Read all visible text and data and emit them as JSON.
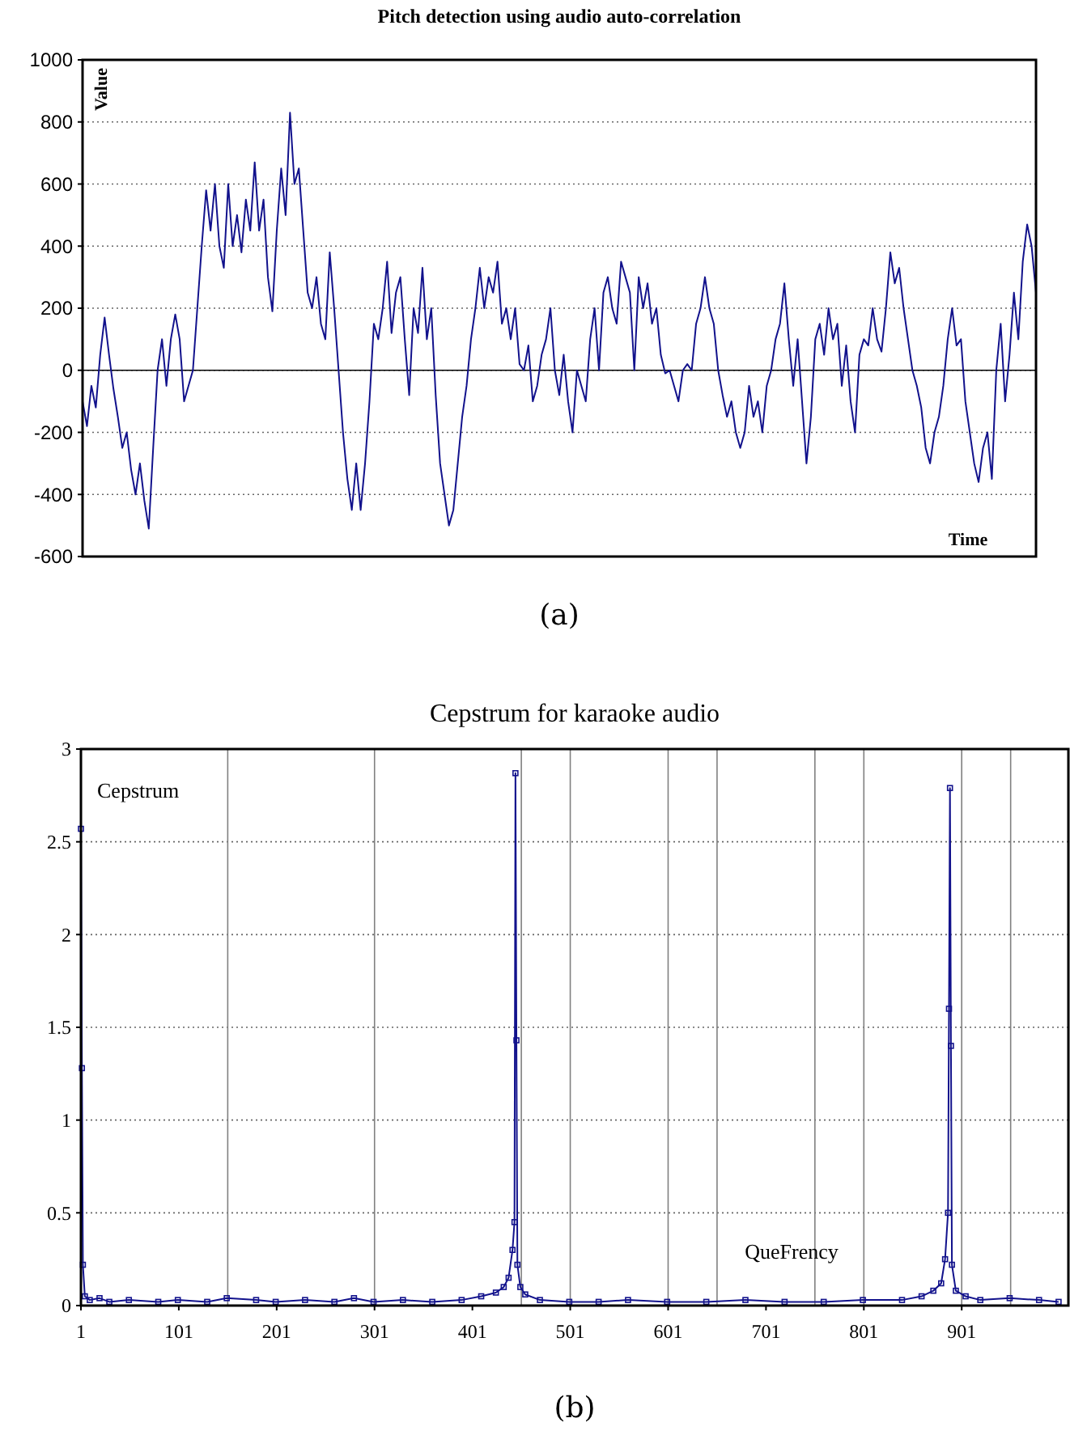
{
  "chart_data": [
    {
      "type": "line",
      "title": "Pitch detection using audio auto-correlation",
      "xlabel": "Time",
      "ylabel": "Value",
      "annotations": [
        "(a)"
      ],
      "categories": [
        null,
        null,
        null,
        null,
        null,
        null,
        null,
        null,
        null,
        null,
        null,
        null,
        null,
        null,
        null,
        null,
        null,
        null,
        null,
        null,
        null,
        null,
        null,
        null,
        null,
        null,
        null,
        null,
        null,
        null,
        null,
        null,
        null,
        null,
        null,
        null,
        null,
        null,
        null,
        null,
        null,
        null,
        null,
        null,
        null,
        null,
        null,
        null,
        null,
        null,
        null,
        null,
        null,
        null,
        null,
        null,
        null,
        null,
        null,
        null,
        null,
        null,
        null,
        null,
        null,
        null,
        null,
        null,
        null,
        null,
        null,
        null,
        null,
        null,
        null,
        null,
        null,
        null,
        null,
        null,
        null,
        null,
        null,
        null,
        null,
        null,
        null,
        null,
        null,
        null,
        null,
        null,
        null,
        null,
        null,
        null,
        null,
        null,
        null,
        null,
        null,
        null,
        null,
        null,
        null,
        null,
        null,
        null,
        null,
        null,
        null,
        null,
        null,
        null,
        null,
        null,
        null,
        null,
        null,
        null,
        null,
        null,
        null,
        null,
        null,
        null,
        null,
        null,
        null,
        null,
        null,
        null,
        null,
        null,
        null,
        null,
        null,
        null,
        null,
        null,
        null,
        null,
        null,
        null,
        null,
        null,
        null,
        null,
        null,
        null,
        null,
        null,
        null,
        null,
        null,
        null,
        null,
        null,
        null,
        null,
        null,
        null,
        null,
        null,
        null,
        null,
        null,
        null,
        null,
        null,
        null,
        null,
        null,
        null,
        null,
        null,
        null,
        null,
        null,
        null,
        null,
        null,
        null,
        null,
        null,
        null,
        null,
        null,
        null,
        null,
        null,
        null,
        null,
        null,
        null,
        null,
        null,
        null,
        null,
        null,
        null,
        null,
        null,
        null,
        null,
        null,
        null,
        null,
        null,
        null,
        null,
        null,
        null,
        null,
        null,
        null,
        null
      ],
      "ylim": [
        -600,
        1000
      ],
      "yticks": [
        -600,
        -400,
        -200,
        0,
        200,
        400,
        600,
        800,
        1000
      ],
      "tick_labels": "y",
      "grid": "y",
      "marker": "none",
      "line_style": "solid",
      "ref_lines": [
        {
          "axis": "y",
          "value": 0,
          "color": "#000000",
          "line_style": "solid"
        }
      ],
      "series": [
        {
          "color": "#12128c",
          "values": [
            -100,
            -180,
            -50,
            -120,
            50,
            170,
            50,
            -60,
            -150,
            -250,
            -200,
            -320,
            -400,
            -300,
            -420,
            -510,
            -250,
            0,
            100,
            -50,
            100,
            180,
            100,
            -100,
            -50,
            0,
            200,
            400,
            580,
            450,
            600,
            400,
            330,
            600,
            400,
            500,
            380,
            550,
            450,
            670,
            450,
            550,
            300,
            190,
            450,
            650,
            500,
            830,
            600,
            650,
            450,
            250,
            200,
            300,
            150,
            100,
            380,
            200,
            0,
            -200,
            -350,
            -450,
            -300,
            -450,
            -300,
            -100,
            150,
            100,
            200,
            350,
            120,
            250,
            300,
            100,
            -80,
            200,
            120,
            330,
            100,
            200,
            -80,
            -300,
            -400,
            -500,
            -450,
            -300,
            -150,
            -50,
            100,
            200,
            330,
            200,
            300,
            250,
            350,
            150,
            200,
            100,
            200,
            20,
            0,
            80,
            -100,
            -50,
            50,
            100,
            200,
            0,
            -80,
            50,
            -100,
            -200,
            0,
            -50,
            -100,
            100,
            200,
            0,
            250,
            300,
            200,
            150,
            350,
            300,
            250,
            0,
            300,
            200,
            280,
            150,
            200,
            50,
            -10,
            0,
            -50,
            -100,
            0,
            20,
            0,
            150,
            200,
            300,
            200,
            150,
            0,
            -80,
            -150,
            -100,
            -200,
            -250,
            -200,
            -50,
            -150,
            -100,
            -200,
            -50,
            0,
            100,
            150,
            280,
            100,
            -50,
            100,
            -100,
            -300,
            -150,
            100,
            150,
            50,
            200,
            100,
            150,
            -50,
            80,
            -100,
            -200,
            50,
            100,
            80,
            200,
            100,
            60,
            200,
            380,
            280,
            330,
            200,
            100,
            0,
            -50,
            -120,
            -250,
            -300,
            -200,
            -150,
            -50,
            100,
            200,
            80,
            100,
            -100,
            -200,
            -300,
            -360,
            -250,
            -200,
            -350,
            0,
            150,
            -100,
            50,
            250,
            100,
            350,
            470,
            400,
            250
          ]
        }
      ]
    },
    {
      "type": "line",
      "title": "Cepstrum for karaoke audio",
      "xlabel": "QueFrency",
      "ylabel": "Cepstrum",
      "annotations": [
        "(b)"
      ],
      "xlim": [
        1,
        1010
      ],
      "ylim": [
        0,
        3
      ],
      "yticks": [
        0,
        0.5,
        1,
        1.5,
        2,
        2.5,
        3
      ],
      "xticks": [
        1,
        101,
        201,
        301,
        401,
        501,
        601,
        701,
        801,
        901
      ],
      "grid": "y",
      "marker": "square",
      "line_style": "solid",
      "ref_lines": [
        {
          "axis": "x",
          "value": 151,
          "color": "#808080",
          "line_style": "solid"
        },
        {
          "axis": "x",
          "value": 301,
          "color": "#808080",
          "line_style": "solid"
        },
        {
          "axis": "x",
          "value": 451,
          "color": "#808080",
          "line_style": "solid"
        },
        {
          "axis": "x",
          "value": 501,
          "color": "#808080",
          "line_style": "solid"
        },
        {
          "axis": "x",
          "value": 601,
          "color": "#808080",
          "line_style": "solid"
        },
        {
          "axis": "x",
          "value": 651,
          "color": "#808080",
          "line_style": "solid"
        },
        {
          "axis": "x",
          "value": 751,
          "color": "#808080",
          "line_style": "solid"
        },
        {
          "axis": "x",
          "value": 801,
          "color": "#808080",
          "line_style": "solid"
        },
        {
          "axis": "x",
          "value": 901,
          "color": "#808080",
          "line_style": "solid"
        },
        {
          "axis": "x",
          "value": 951,
          "color": "#808080",
          "line_style": "solid"
        }
      ],
      "series": [
        {
          "color": "#12128c",
          "x": [
            1,
            2,
            3,
            5,
            10,
            20,
            30,
            50,
            80,
            100,
            130,
            150,
            180,
            200,
            230,
            260,
            280,
            300,
            330,
            360,
            390,
            410,
            425,
            433,
            438,
            442,
            444,
            445,
            446,
            447,
            450,
            455,
            470,
            500,
            530,
            560,
            600,
            640,
            680,
            720,
            760,
            800,
            840,
            860,
            872,
            880,
            884,
            887,
            888,
            889,
            890,
            891,
            895,
            905,
            920,
            950,
            980,
            1000
          ],
          "values": [
            2.57,
            1.28,
            0.22,
            0.05,
            0.03,
            0.04,
            0.02,
            0.03,
            0.02,
            0.03,
            0.02,
            0.04,
            0.03,
            0.02,
            0.03,
            0.02,
            0.04,
            0.02,
            0.03,
            0.02,
            0.03,
            0.05,
            0.07,
            0.1,
            0.15,
            0.3,
            0.45,
            2.87,
            1.43,
            0.22,
            0.1,
            0.06,
            0.03,
            0.02,
            0.02,
            0.03,
            0.02,
            0.02,
            0.03,
            0.02,
            0.02,
            0.03,
            0.03,
            0.05,
            0.08,
            0.12,
            0.25,
            0.5,
            1.6,
            2.79,
            1.4,
            0.22,
            0.08,
            0.05,
            0.03,
            0.04,
            0.03,
            0.02
          ]
        }
      ]
    }
  ]
}
